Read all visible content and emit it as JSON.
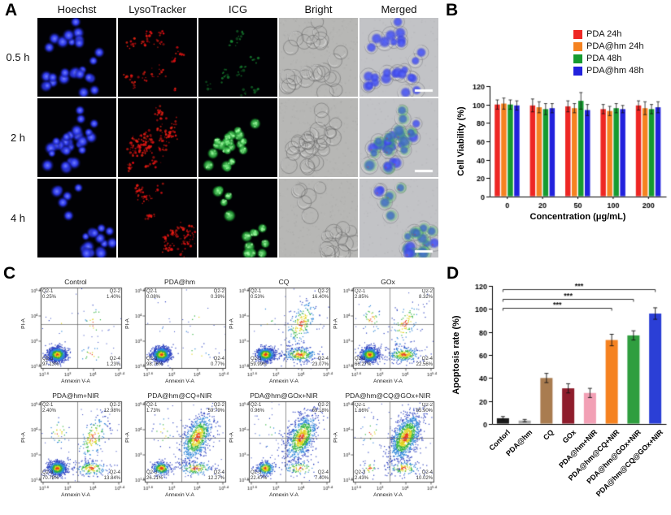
{
  "panel_a": {
    "label": "A",
    "columns": [
      "Hoechst",
      "LysoTracker",
      "ICG",
      "Bright",
      "Merged"
    ],
    "rows": [
      "0.5 h",
      "2 h",
      "4 h"
    ],
    "channel_colors": {
      "hoechst": "#2b36e6",
      "lysotracker": "#e01818",
      "icg": "#23b03a"
    },
    "scale_bar": true
  },
  "panel_b": {
    "label": "B"
  },
  "panel_c": {
    "label": "C"
  },
  "panel_d": {
    "label": "D"
  },
  "chart_data": [
    {
      "id": "B",
      "type": "bar",
      "title": "",
      "xlabel": "Concentration (μg/mL)",
      "ylabel": "Cell Viability (%)",
      "categories": [
        "0",
        "20",
        "50",
        "100",
        "200"
      ],
      "ylim": [
        0,
        120
      ],
      "yticks": [
        0,
        20,
        40,
        60,
        80,
        100,
        120
      ],
      "legend_position": "top-right",
      "series": [
        {
          "name": "PDA 24h",
          "color": "#ee2724",
          "values": [
            100,
            99,
            98,
            95,
            99
          ],
          "errors": [
            5,
            7,
            6,
            5,
            5
          ]
        },
        {
          "name": "PDA@hm 24h",
          "color": "#f58220",
          "values": [
            101,
            97,
            96,
            93,
            96
          ],
          "errors": [
            6,
            6,
            5,
            5,
            7
          ]
        },
        {
          "name": "PDA 48h",
          "color": "#169b30",
          "values": [
            100,
            95,
            104,
            96,
            95
          ],
          "errors": [
            5,
            6,
            9,
            5,
            5
          ]
        },
        {
          "name": "PDA@hm 48h",
          "color": "#2222dd",
          "values": [
            99,
            96,
            94,
            95,
            97
          ],
          "errors": [
            5,
            5,
            6,
            4,
            6
          ]
        }
      ]
    },
    {
      "id": "C",
      "type": "scatter",
      "subtype": "flow_cytometry",
      "xlabel": "Annexin V-A",
      "ylabel": "PI-A",
      "tick_exponents": [
        "1.6",
        "3",
        "4",
        "5.4"
      ],
      "quadrant_labels": [
        "Q2-1",
        "Q2-2",
        "Q2-3",
        "Q2-4"
      ],
      "plots": [
        {
          "title": "Control",
          "q1": "0.25%",
          "q2": "1.40%",
          "q3": "97.13%",
          "q4": "1.23%"
        },
        {
          "title": "PDA@hm",
          "q1": "0.08%",
          "q2": "0.39%",
          "q3": "98.76%",
          "q4": "0.77%"
        },
        {
          "title": "CQ",
          "q1": "0.53%",
          "q2": "16.40%",
          "q3": "59.99%",
          "q4": "23.07%"
        },
        {
          "title": "GOx",
          "q1": "2.85%",
          "q2": "8.32%",
          "q3": "66.27%",
          "q4": "22.56%"
        },
        {
          "title": "PDA@hm+NIR",
          "q1": "2.40%",
          "q2": "12.98%",
          "q3": "70.78%",
          "q4": "13.84%"
        },
        {
          "title": "PDA@hm@CQ+NIR",
          "q1": "1.73%",
          "q2": "59.79%",
          "q3": "26.21%",
          "q4": "12.27%"
        },
        {
          "title": "PDA@hm@GOx+NIR",
          "q1": "0.96%",
          "q2": "69.18%",
          "q3": "22.47%",
          "q4": "7.40%"
        },
        {
          "title": "PDA@hm@CQ@GOx+NIR",
          "q1": "1.66%",
          "q2": "85.90%",
          "q3": "2.43%",
          "q4": "10.02%"
        }
      ]
    },
    {
      "id": "D",
      "type": "bar",
      "title": "",
      "xlabel": "",
      "ylabel": "Apoptosis rate  (%)",
      "categories": [
        "Contorl",
        "PDA@hm",
        "CQ",
        "GOx",
        "PDA@hm+NIR",
        "PDA@hm@CQ+NIR",
        "PDA@hm@GOx+NIR",
        "PDA@hm@CQ@GOx+NIR"
      ],
      "values": [
        5,
        3,
        40,
        31,
        27,
        73,
        77,
        96
      ],
      "errors": [
        1.5,
        1,
        4,
        4,
        4,
        5,
        4,
        5
      ],
      "colors": [
        "#1a1a1a",
        "#a9a9a9",
        "#a97c50",
        "#8f1d2c",
        "#f2a0b5",
        "#f58220",
        "#2f9e3f",
        "#2b3fd6"
      ],
      "ylim": [
        0,
        120
      ],
      "yticks": [
        0,
        20,
        40,
        60,
        80,
        100,
        120
      ],
      "significance": [
        {
          "from": 0,
          "to": 5,
          "label": "***",
          "y": 101
        },
        {
          "from": 0,
          "to": 6,
          "label": "***",
          "y": 109
        },
        {
          "from": 0,
          "to": 7,
          "label": "***",
          "y": 117
        }
      ]
    }
  ]
}
